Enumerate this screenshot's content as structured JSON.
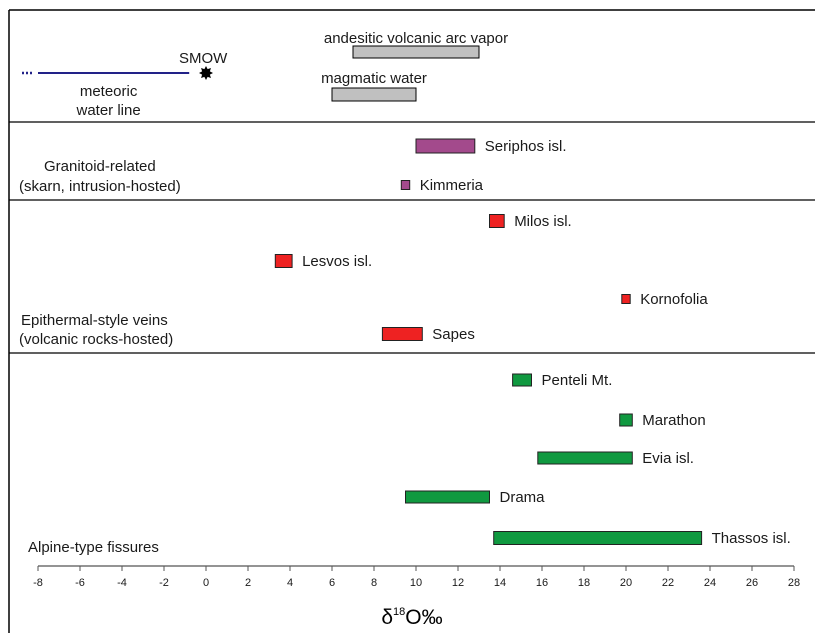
{
  "chart_data": {
    "type": "range-bar",
    "xlabel": "δ18O‰",
    "xlabel_main": "δ",
    "xlabel_sup": "18",
    "xlabel_tail": "O‰",
    "xlim": [
      -8,
      28
    ],
    "xticks": [
      -8,
      -6,
      -4,
      -2,
      0,
      2,
      4,
      6,
      8,
      10,
      12,
      14,
      16,
      18,
      20,
      22,
      24,
      26,
      28
    ],
    "reference": {
      "smow": {
        "label": "SMOW",
        "x": 0
      },
      "meteoric_line": {
        "label_line1": "meteoric",
        "label_line2": "water line",
        "x_start": -8,
        "x_end": -0.8
      },
      "bars": [
        {
          "label": "andesitic volcanic arc vapor",
          "min": 7,
          "max": 13,
          "color": "#c0c0c0"
        },
        {
          "label": "magmatic water",
          "min": 6,
          "max": 10,
          "color": "#c0c0c0"
        }
      ]
    },
    "groups": [
      {
        "label_line1": "Granitoid-related",
        "label_line2": "(skarn, intrusion-hosted)",
        "color": "#a34a8c",
        "deposits": [
          {
            "label": "Seriphos isl.",
            "min": 10,
            "max": 12.8
          },
          {
            "label": "Kimmeria",
            "min": 9.3,
            "max": 9.7
          }
        ]
      },
      {
        "label_line1": "Epithermal-style veins",
        "label_line2": "(volcanic rocks-hosted)",
        "color": "#ee2222",
        "deposits": [
          {
            "label": "Milos isl.",
            "min": 13.5,
            "max": 14.2
          },
          {
            "label": "Lesvos isl.",
            "min": 3.3,
            "max": 4.1
          },
          {
            "label": "Kornofolia",
            "min": 19.8,
            "max": 20.2
          },
          {
            "label": "Sapes",
            "min": 8.4,
            "max": 10.3
          }
        ]
      },
      {
        "label_line1": "Alpine-type fissures",
        "label_line2": "",
        "color": "#109940",
        "deposits": [
          {
            "label": "Penteli Mt.",
            "min": 14.6,
            "max": 15.5
          },
          {
            "label": "Marathon",
            "min": 19.7,
            "max": 20.3
          },
          {
            "label": "Evia isl.",
            "min": 15.8,
            "max": 20.3
          },
          {
            "label": "Drama",
            "min": 9.5,
            "max": 13.5
          },
          {
            "label": "Thassos  isl.",
            "min": 13.7,
            "max": 23.6
          }
        ]
      }
    ],
    "grid": false
  }
}
